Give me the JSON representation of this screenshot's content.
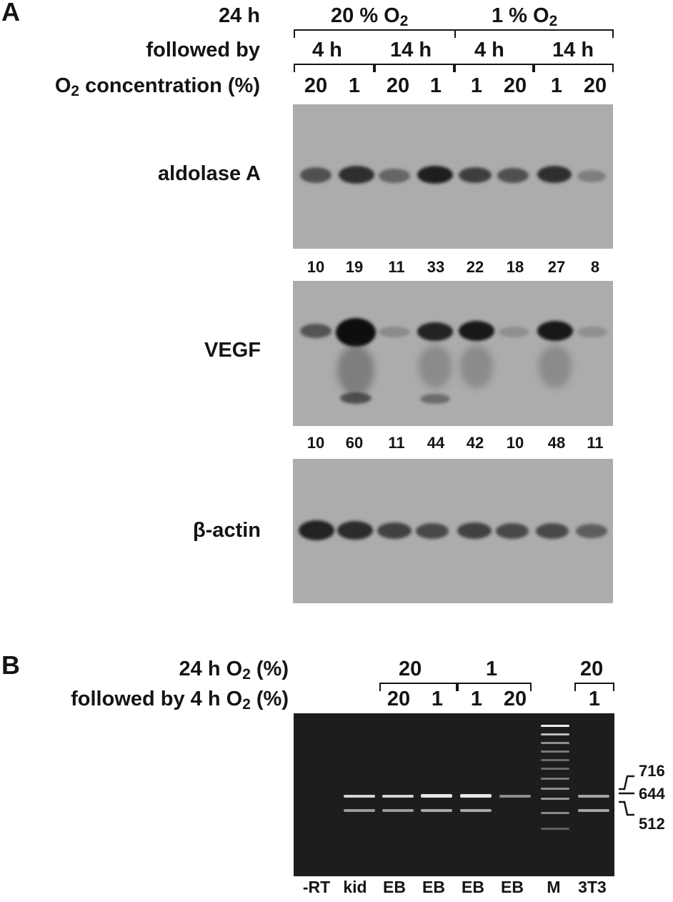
{
  "panel_a": {
    "letter": "A",
    "header_row1": {
      "label": "24 h",
      "group1": "20 % O",
      "group2": "1 % O",
      "sub": "2"
    },
    "header_row2": {
      "label": "followed by",
      "times": [
        "4 h",
        "14 h",
        "4 h",
        "14 h"
      ]
    },
    "header_row3": {
      "label_main": "O",
      "label_sub": "2",
      "label_rest": " concentration (%)",
      "lanes": [
        "20",
        "1",
        "20",
        "1",
        "1",
        "20",
        "1",
        "20"
      ]
    },
    "blots": [
      {
        "label": "aldolase A",
        "quant": [
          "10",
          "19",
          "11",
          "33",
          "22",
          "18",
          "27",
          "8"
        ]
      },
      {
        "label": "VEGF",
        "quant": [
          "10",
          "60",
          "11",
          "44",
          "42",
          "10",
          "48",
          "11"
        ]
      },
      {
        "label": "β-actin",
        "quant": []
      }
    ]
  },
  "panel_b": {
    "letter": "B",
    "row1": {
      "label_main": "24 h O",
      "label_sub": "2",
      "label_rest": " (%)",
      "groups": [
        "20",
        "1",
        "20"
      ]
    },
    "row2": {
      "label_main": "followed by 4 h O",
      "label_sub": "2",
      "label_rest": " (%)",
      "values": [
        "20",
        "1",
        "1",
        "20",
        "1"
      ]
    },
    "lanes": [
      "-RT",
      "kid",
      "EB",
      "EB",
      "EB",
      "EB",
      "M",
      "3T3"
    ],
    "markers": [
      "716",
      "644",
      "512"
    ]
  }
}
